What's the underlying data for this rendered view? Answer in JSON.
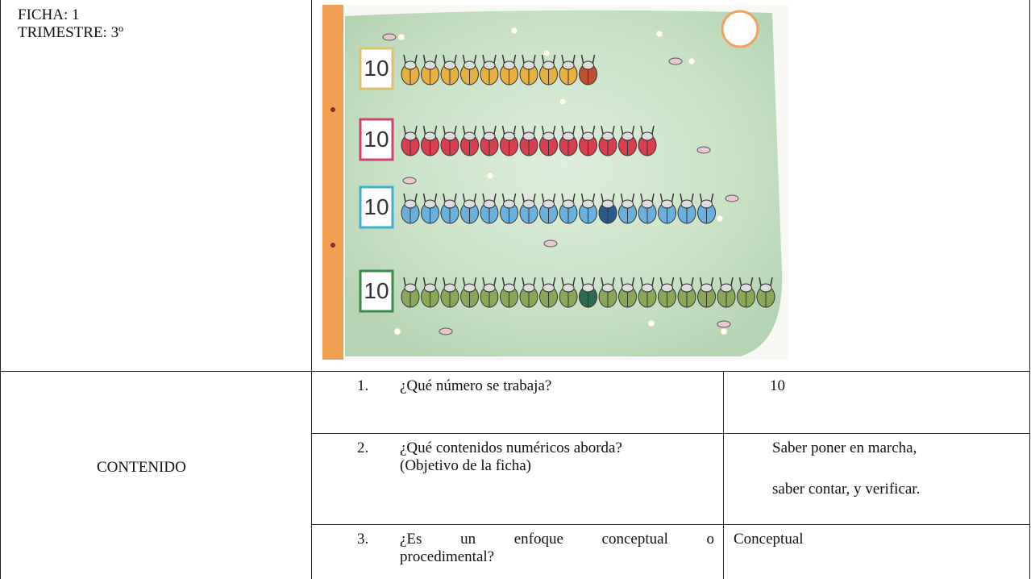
{
  "header": {
    "ficha": "FICHA: 1",
    "trimestre": "TRIMESTRE: 3º"
  },
  "worksheet": {
    "boxes": [
      "10",
      "10",
      "10",
      "10"
    ]
  },
  "content": {
    "label": "CONTENIDO",
    "rows": [
      {
        "number": "1.",
        "question": [
          "¿Qué número se trabaja?"
        ],
        "answer": [
          "10"
        ]
      },
      {
        "number": "2.",
        "question": [
          "¿Qué contenidos numéricos aborda?",
          "(Objetivo de la ficha)"
        ],
        "answer": [
          "Saber poner en marcha,",
          "saber contar, y verificar."
        ]
      },
      {
        "number": "3.",
        "question": [
          "¿Es un enfoque conceptual o",
          "procedimental?"
        ],
        "answer": [
          "Conceptual"
        ]
      }
    ]
  }
}
